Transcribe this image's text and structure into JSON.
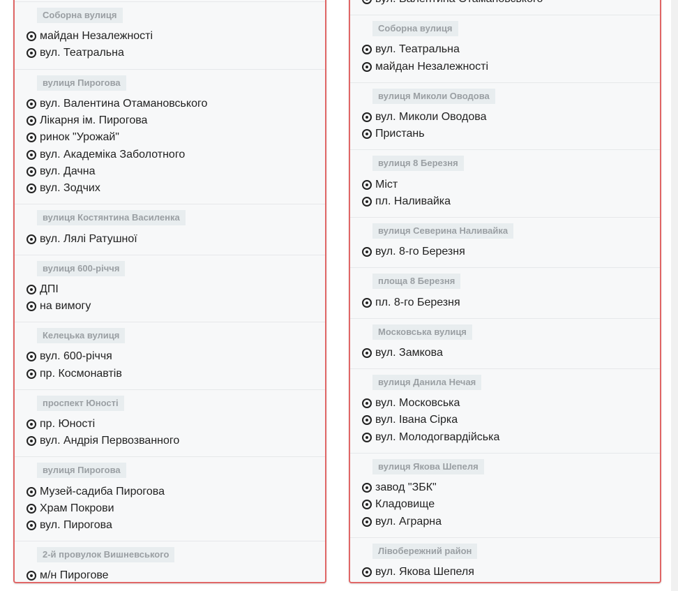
{
  "left_panel": {
    "groups": [
      {
        "badge": "Соборна вулиця",
        "items": [
          "майдан Незалежності",
          "вул. Театральна"
        ]
      },
      {
        "badge": "вулиця Пирогова",
        "items": [
          "вул. Валентина Отамановського",
          "Лікарня ім. Пирогова",
          "ринок \"Урожай\"",
          "вул. Академіка Заболотного",
          "вул. Дачна",
          "вул. Зодчих"
        ]
      },
      {
        "badge": "вулиця Костянтина Василенка",
        "items": [
          "вул. Лялі Ратушної"
        ]
      },
      {
        "badge": "вулиця 600-річчя",
        "items": [
          "ДПІ",
          "на вимогу"
        ]
      },
      {
        "badge": "Келецька вулиця",
        "items": [
          "вул. 600-річчя",
          "пр. Космонавтів"
        ]
      },
      {
        "badge": "проспект Юності",
        "items": [
          "пр. Юності",
          "вул. Андрія Первозванного"
        ]
      },
      {
        "badge": "вулиця Пирогова",
        "items": [
          "Музей-садиба Пирогова",
          "Храм Покрови",
          "вул. Пирогова"
        ]
      },
      {
        "badge": "2-й провулок Вишневського",
        "items": [
          "м/н Пирогове"
        ]
      }
    ]
  },
  "right_panel": {
    "groups": [
      {
        "badge": null,
        "items": [
          "вул. Валентина Отамановського"
        ]
      },
      {
        "badge": "Соборна вулиця",
        "items": [
          "вул. Театральна",
          "майдан Незалежності"
        ]
      },
      {
        "badge": "вулиця Миколи Оводова",
        "items": [
          "вул. Миколи Оводова",
          "Пристань"
        ]
      },
      {
        "badge": "вулиця 8 Березня",
        "items": [
          "Міст",
          "пл. Наливайка"
        ]
      },
      {
        "badge": "вулиця Северина Наливайка",
        "items": [
          "вул. 8-го Березня"
        ]
      },
      {
        "badge": "площа 8 Березня",
        "items": [
          "пл. 8-го Березня"
        ]
      },
      {
        "badge": "Московська вулиця",
        "items": [
          "вул. Замкова"
        ]
      },
      {
        "badge": "вулиця Данила Нечая",
        "items": [
          "вул. Московська",
          "вул. Івана Сірка",
          "вул. Молодогвардійська"
        ]
      },
      {
        "badge": "вулиця Якова Шепеля",
        "items": [
          "завод \"ЗБК\"",
          "Кладовище",
          "вул. Аграрна"
        ]
      },
      {
        "badge": "Лівобережний район",
        "items": [
          "вул. Якова Шепеля"
        ]
      }
    ]
  },
  "colors": {
    "panel_border": "#e06666",
    "badge_bg": "#e8edef",
    "badge_text": "#9a9fa3"
  },
  "icons": {
    "stop": "circled-dot-icon"
  }
}
